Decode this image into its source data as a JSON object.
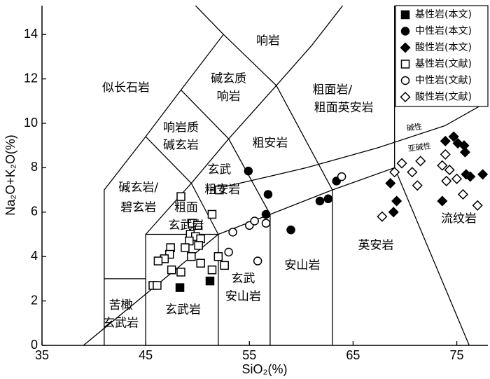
{
  "chart_data": {
    "type": "scatter",
    "x_label": "SiO₂(%)",
    "y_label": "Na₂O+K₂O(%)",
    "xlim": [
      35,
      78
    ],
    "ylim": [
      0,
      15.3
    ],
    "xticks": [
      35,
      45,
      55,
      65,
      75
    ],
    "yticks": [
      0,
      2,
      4,
      6,
      8,
      10,
      12,
      14
    ],
    "legend": "upper right",
    "annotations": [
      "似长石岩",
      "响岩",
      "碱玄质",
      "响岩",
      "响岩质",
      "碱玄岩",
      "粗面岩/",
      "粗面英安岩",
      "粗安岩",
      "玄武",
      "粗安岩",
      "碱玄岩/",
      "碧玄岩",
      "粗面",
      "玄武岩",
      "苦橄",
      "玄武岩",
      "玄武岩",
      "玄武",
      "安山岩",
      "安山岩",
      "英安岩",
      "流纹岩",
      "碱性",
      "亚碱性"
    ],
    "series": [
      {
        "name": "基性岩(本文)",
        "marker": "square",
        "filled": true,
        "color": "#000000",
        "x": [
          48.3,
          51.2
        ],
        "values": [
          2.6,
          2.9
        ]
      },
      {
        "name": "中性岩(本文)",
        "marker": "circle",
        "filled": true,
        "color": "#000000",
        "x": [
          54.9,
          56.8,
          56.6,
          59.0,
          61.8,
          62.6,
          63.4
        ],
        "values": [
          7.85,
          6.8,
          5.9,
          5.2,
          6.5,
          6.6,
          7.4
        ]
      },
      {
        "name": "酸性岩(本文)",
        "marker": "diamond",
        "filled": true,
        "color": "#000000",
        "x": [
          69.2,
          68.9,
          68.6,
          73.9,
          74.7,
          75.1,
          75.7,
          75.8,
          75.9,
          76.3,
          77.5,
          73.6
        ],
        "values": [
          6.5,
          6.0,
          7.3,
          9.2,
          9.4,
          9.1,
          9.0,
          8.7,
          7.7,
          7.6,
          7.7,
          6.5
        ]
      },
      {
        "name": "基性岩(文献)",
        "marker": "square",
        "filled": false,
        "color": "#000000",
        "x": [
          48.4,
          52.1,
          51.4,
          49.5,
          50.0,
          49.3,
          49.8,
          49.2,
          48.8,
          50.3,
          50.1,
          47.4,
          47.3,
          49.4,
          50.3,
          52.0,
          52.6,
          46.8,
          46.2,
          47.5,
          48.4,
          51.4,
          45.7,
          46.1
        ],
        "values": [
          6.7,
          7.0,
          5.9,
          5.5,
          5.4,
          5.0,
          4.9,
          4.7,
          4.4,
          4.8,
          4.5,
          4.4,
          4.1,
          4.0,
          3.7,
          4.0,
          3.6,
          3.9,
          3.8,
          3.4,
          3.3,
          3.4,
          2.7,
          2.7
        ]
      },
      {
        "name": "中性岩(文献)",
        "marker": "circle",
        "filled": false,
        "color": "#000000",
        "x": [
          63.9,
          53.4,
          55.0,
          55.5,
          56.6,
          53.0,
          55.8
        ],
        "values": [
          7.6,
          5.1,
          5.4,
          5.6,
          5.5,
          4.2,
          3.8
        ]
      },
      {
        "name": "酸性岩(文献)",
        "marker": "diamond",
        "filled": false,
        "color": "#000000",
        "x": [
          67.8,
          69.0,
          69.7,
          71.5,
          70.7,
          71.2,
          73.9,
          73.6,
          74.3,
          74.0,
          75.0,
          75.6,
          77.0
        ],
        "values": [
          5.8,
          7.8,
          8.2,
          8.3,
          7.8,
          7.2,
          8.6,
          8.1,
          7.9,
          7.4,
          7.5,
          6.8,
          6.3
        ]
      }
    ]
  }
}
